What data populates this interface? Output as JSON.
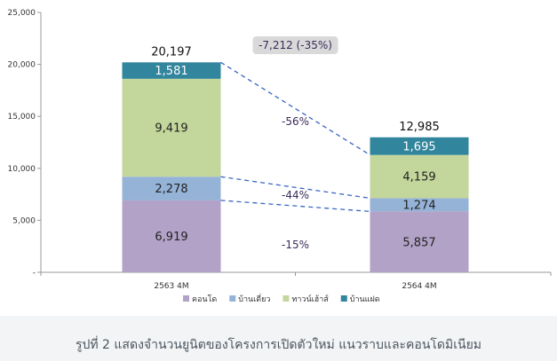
{
  "chart_data": {
    "type": "stacked-bar",
    "categories": [
      "2563 4M",
      "2564 4M"
    ],
    "series": [
      {
        "name": "คอนโด",
        "color": "#b3a2c7",
        "values": [
          6919,
          5857
        ],
        "labels": [
          "6,919",
          "5,857"
        ],
        "label_color": "#222222"
      },
      {
        "name": "บ้านเดี่ยว",
        "color": "#95b3d7",
        "values": [
          2278,
          1274
        ],
        "labels": [
          "2,278",
          "1,274"
        ],
        "label_color": "#222222"
      },
      {
        "name": "ทาวน์เฮ้าส์",
        "color": "#c3d69b",
        "values": [
          9419,
          4159
        ],
        "labels": [
          "9,419",
          "4,159"
        ],
        "label_color": "#222222"
      },
      {
        "name": "บ้านแฝด",
        "color": "#31859c",
        "values": [
          1581,
          1695
        ],
        "labels": [
          "1,581",
          "1,695"
        ],
        "label_color": "#ffffff"
      }
    ],
    "totals": [
      "20,197",
      "12,985"
    ],
    "ylim": [
      0,
      25000
    ],
    "yticks": [
      {
        "value": 0,
        "label": "-"
      },
      {
        "value": 5000,
        "label": "5,000"
      },
      {
        "value": 10000,
        "label": "10,000"
      },
      {
        "value": 15000,
        "label": "15,000"
      },
      {
        "value": 20000,
        "label": "20,000"
      },
      {
        "value": 25000,
        "label": "25,000"
      }
    ],
    "annotations": {
      "total_change": "-7,212 (-35%)",
      "condo_change": "-15%",
      "detached_change": "-44%",
      "townhouse_change": "-56%"
    },
    "legend_position": "bottom",
    "grid": false
  },
  "caption": "รูปที่ 2 แสดงจำนวนยูนิตของโครงการเปิดตัวใหม่ แนวราบและคอนโดมิเนียม"
}
